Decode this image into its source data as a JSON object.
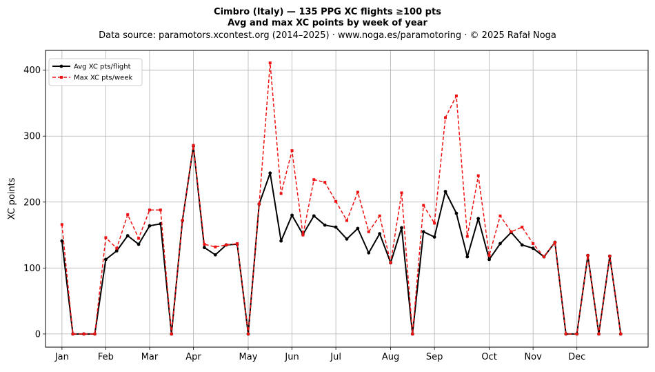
{
  "chart_data": {
    "type": "line",
    "title": "Cimbro (Italy)  —  135 PPG XC flights ≥100 pts",
    "subtitle": "Avg and max XC points by week of year",
    "source_note": "Data source: paramotors.xcontest.org (2014–2025)  ·  www.noga.es/paramotoring  ·  © 2025 Rafał Noga",
    "xlabel": "",
    "ylabel": "XC points",
    "xlim": [
      -1.5,
      53.5
    ],
    "ylim": [
      -20,
      430
    ],
    "grid": true,
    "legend_position": "top-left",
    "x_ticks": [
      {
        "label": "Jan",
        "week": 0
      },
      {
        "label": "Feb",
        "week": 4
      },
      {
        "label": "Mar",
        "week": 8
      },
      {
        "label": "Apr",
        "week": 12
      },
      {
        "label": "May",
        "week": 17
      },
      {
        "label": "Jun",
        "week": 21
      },
      {
        "label": "Jul",
        "week": 25
      },
      {
        "label": "Aug",
        "week": 30
      },
      {
        "label": "Sep",
        "week": 34
      },
      {
        "label": "Oct",
        "week": 39
      },
      {
        "label": "Nov",
        "week": 43
      },
      {
        "label": "Dec",
        "week": 47
      }
    ],
    "y_ticks": [
      0,
      100,
      200,
      300,
      400
    ],
    "x": [
      0,
      1,
      2,
      3,
      4,
      5,
      6,
      7,
      8,
      9,
      10,
      11,
      12,
      13,
      14,
      15,
      16,
      17,
      18,
      19,
      20,
      21,
      22,
      23,
      24,
      25,
      26,
      27,
      28,
      29,
      30,
      31,
      32,
      33,
      34,
      35,
      36,
      37,
      38,
      39,
      40,
      41,
      42,
      43,
      44,
      45,
      46,
      47,
      48,
      49,
      50,
      51
    ],
    "series": [
      {
        "name": "Avg XC pts/flight",
        "color": "#000000",
        "line_style": "solid",
        "marker": "circle",
        "values": [
          141,
          0,
          0,
          0,
          113,
          126,
          149,
          136,
          164,
          167,
          0,
          172,
          285,
          131,
          120,
          135,
          136,
          0,
          197,
          244,
          141,
          180,
          151,
          179,
          165,
          162,
          144,
          160,
          123,
          152,
          108,
          161,
          0,
          155,
          147,
          216,
          183,
          117,
          175,
          113,
          137,
          154,
          135,
          130,
          117,
          139,
          0,
          0,
          119,
          0,
          118,
          0
        ]
      },
      {
        "name": "Max XC pts/week",
        "color": "#ee1111",
        "line_style": "dashed",
        "marker": "square",
        "values": [
          166,
          0,
          0,
          0,
          146,
          130,
          181,
          145,
          188,
          188,
          0,
          172,
          286,
          136,
          132,
          135,
          137,
          0,
          197,
          411,
          213,
          278,
          150,
          234,
          230,
          201,
          172,
          215,
          155,
          179,
          108,
          214,
          0,
          195,
          168,
          328,
          361,
          148,
          240,
          119,
          179,
          155,
          162,
          137,
          117,
          139,
          0,
          0,
          119,
          0,
          118,
          0
        ]
      }
    ]
  }
}
